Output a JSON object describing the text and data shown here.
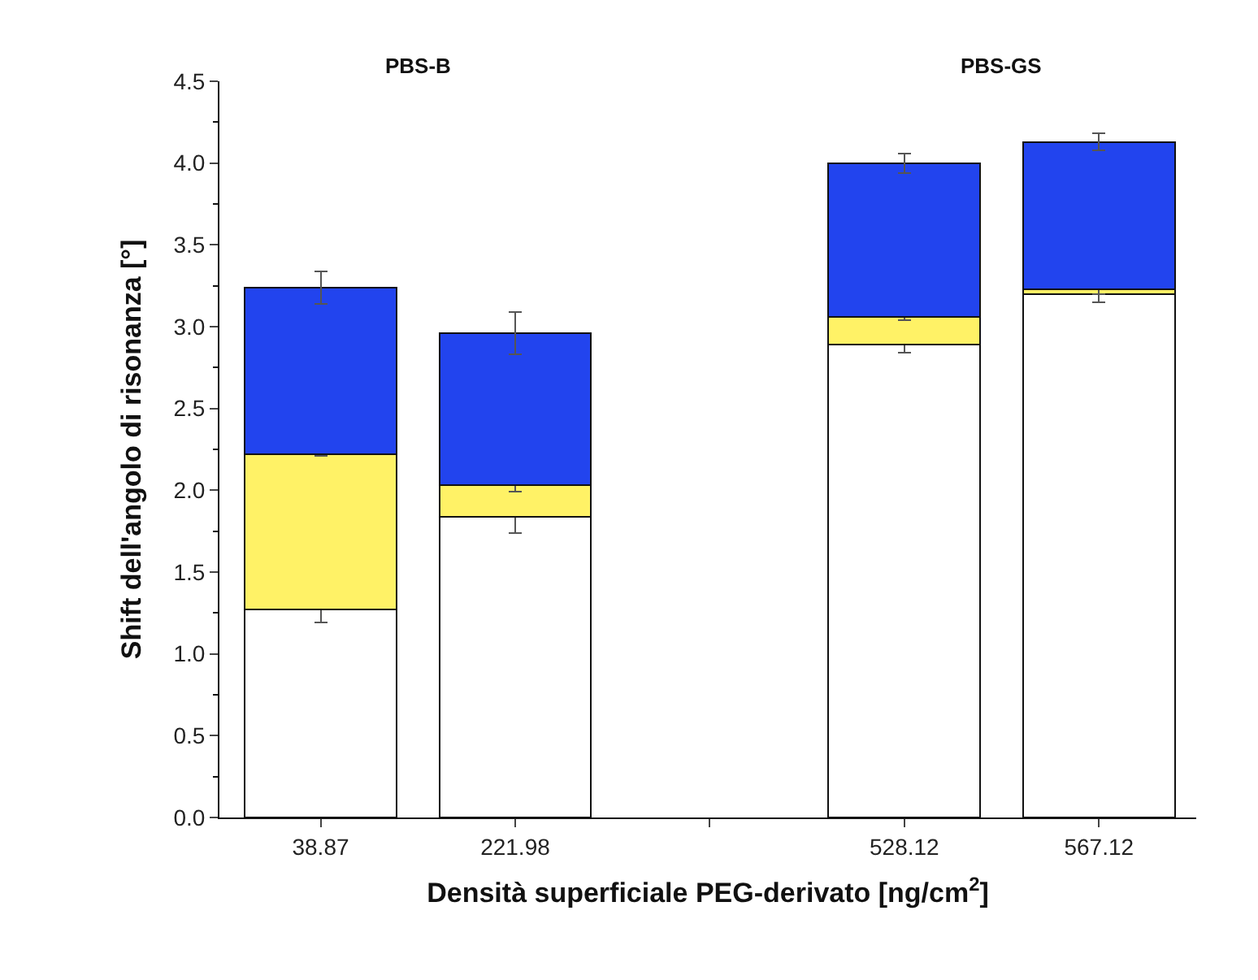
{
  "chart_data": {
    "type": "bar",
    "stacked": true,
    "xlabel": "Densità superficiale PEG-derivato [ng/cm$^{2}$]",
    "ylabel": "Shift dell'angolo di risonanza [°]",
    "categories": [
      "38.87",
      "221.98",
      null,
      "528.12",
      "567.12"
    ],
    "series": [
      {
        "color": "#ffffff",
        "values": [
          1.27,
          1.84,
          null,
          2.89,
          3.2
        ],
        "errors": [
          0.08,
          0.1,
          null,
          0.05,
          0.05
        ]
      },
      {
        "color": "#fff266",
        "values": [
          0.95,
          0.19,
          null,
          0.17,
          0.03
        ],
        "errors": [
          0.01,
          0.04,
          null,
          0.02,
          0.03
        ]
      },
      {
        "color": "#2244ee",
        "values": [
          1.02,
          0.93,
          null,
          0.94,
          0.9
        ],
        "errors": [
          0.1,
          0.13,
          null,
          0.06,
          0.05
        ]
      }
    ],
    "annotations": [
      "PBS-B",
      "PBS-GS"
    ],
    "ylim": [
      0,
      4.5
    ],
    "yticks": [
      {
        "value": 0,
        "label": "0.0"
      },
      {
        "value": 0.5,
        "label": "0.5"
      },
      {
        "value": 1,
        "label": "1.0"
      },
      {
        "value": 1.5,
        "label": "1.5"
      },
      {
        "value": 2,
        "label": "2.0"
      },
      {
        "value": 2.5,
        "label": "2.5"
      },
      {
        "value": 3,
        "label": "3.0"
      },
      {
        "value": 3.5,
        "label": "3.5"
      },
      {
        "value": 4,
        "label": "4.0"
      },
      {
        "value": 4.5,
        "label": "4.5"
      }
    ]
  }
}
